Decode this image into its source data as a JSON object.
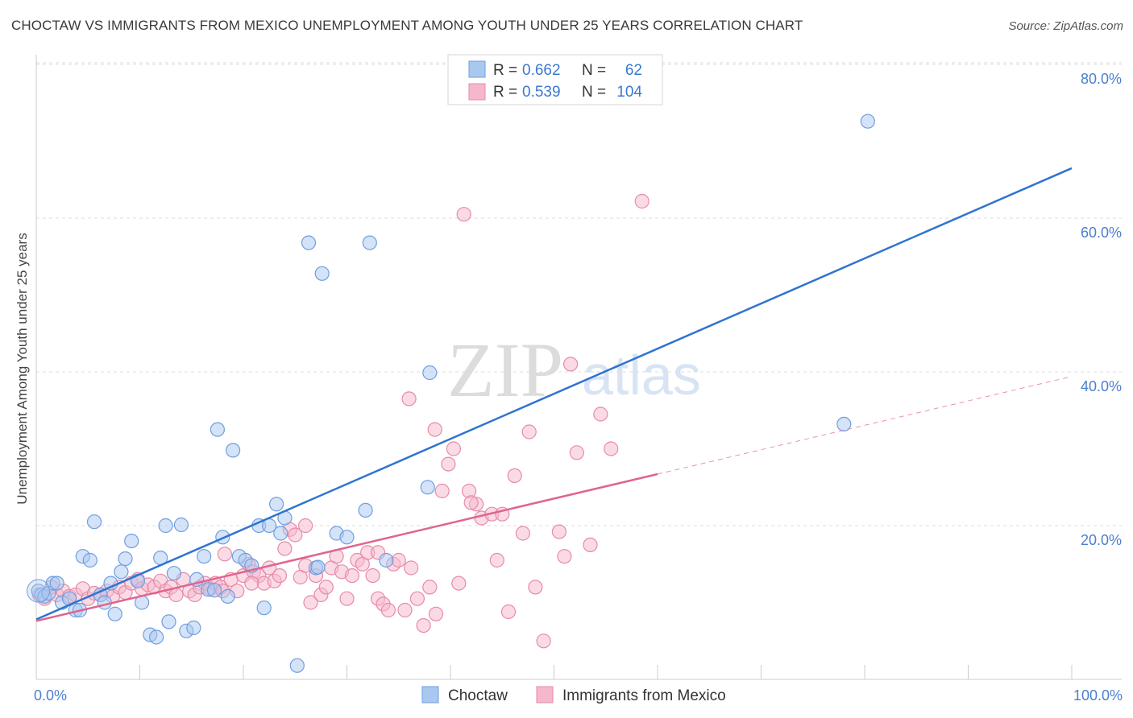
{
  "title": "CHOCTAW VS IMMIGRANTS FROM MEXICO UNEMPLOYMENT AMONG YOUTH UNDER 25 YEARS CORRELATION CHART",
  "source": "Source: ZipAtlas.com",
  "watermark": {
    "zip": "ZIP",
    "atlas": "atlas"
  },
  "colors": {
    "choctaw_fill": "#a9c8f0",
    "choctaw_stroke": "#6f9ee0",
    "choctaw_line": "#2f74d0",
    "mexico_fill": "#f5b8cb",
    "mexico_stroke": "#e88aa8",
    "mexico_line": "#e0648f",
    "grid": "#dddddd",
    "tick_text": "#4a7fd1"
  },
  "chart_data": {
    "type": "scatter",
    "title": "CHOCTAW VS IMMIGRANTS FROM MEXICO UNEMPLOYMENT AMONG YOUTH UNDER 25 YEARS CORRELATION CHART",
    "xlabel": "",
    "ylabel": "Unemployment Among Youth under 25 years",
    "xlim": [
      0,
      100
    ],
    "ylim": [
      0,
      83
    ],
    "x_tick_labels": [
      "0.0%",
      "100.0%"
    ],
    "y_ticks": [
      20,
      40,
      60,
      80
    ],
    "y_tick_labels": [
      "20.0%",
      "40.0%",
      "60.0%",
      "80.0%"
    ],
    "legend": [
      {
        "r_label": "R =",
        "r": "0.662",
        "n_label": "N =",
        "n": "62"
      },
      {
        "r_label": "R =",
        "r": "0.539",
        "n_label": "N =",
        "n": "104"
      }
    ],
    "series": [
      {
        "name": "Choctaw",
        "trend": {
          "x0": 0,
          "y0": 7.8,
          "x1": 100,
          "y1": 66.5,
          "dashed_after": null
        },
        "points": [
          [
            0.2,
            11.5
          ],
          [
            0.5,
            11.0
          ],
          [
            0.8,
            10.8
          ],
          [
            1.2,
            11.2
          ],
          [
            1.6,
            12.5
          ],
          [
            2.0,
            12.5
          ],
          [
            2.5,
            10.0
          ],
          [
            3.2,
            10.5
          ],
          [
            3.8,
            9.0
          ],
          [
            4.2,
            9.0
          ],
          [
            4.5,
            16.0
          ],
          [
            5.2,
            15.5
          ],
          [
            5.6,
            20.5
          ],
          [
            6.2,
            11.0
          ],
          [
            6.6,
            10.0
          ],
          [
            7.2,
            12.5
          ],
          [
            7.6,
            8.5
          ],
          [
            8.2,
            14.0
          ],
          [
            8.6,
            15.7
          ],
          [
            9.2,
            18.0
          ],
          [
            9.8,
            12.8
          ],
          [
            10.2,
            10.0
          ],
          [
            11.0,
            5.8
          ],
          [
            11.6,
            5.5
          ],
          [
            12.0,
            15.8
          ],
          [
            12.5,
            20.0
          ],
          [
            12.8,
            7.5
          ],
          [
            13.3,
            13.8
          ],
          [
            14.0,
            20.1
          ],
          [
            14.5,
            6.3
          ],
          [
            15.2,
            6.7
          ],
          [
            15.5,
            13.0
          ],
          [
            16.2,
            16.0
          ],
          [
            16.6,
            11.7
          ],
          [
            17.2,
            11.6
          ],
          [
            17.5,
            32.5
          ],
          [
            18.0,
            18.5
          ],
          [
            18.5,
            10.8
          ],
          [
            19.0,
            29.8
          ],
          [
            19.6,
            16.0
          ],
          [
            20.2,
            15.5
          ],
          [
            20.8,
            14.8
          ],
          [
            21.5,
            20.0
          ],
          [
            22.0,
            9.3
          ],
          [
            22.5,
            20.0
          ],
          [
            23.2,
            22.8
          ],
          [
            23.6,
            19.0
          ],
          [
            24.0,
            21.0
          ],
          [
            25.2,
            1.8
          ],
          [
            26.3,
            56.8
          ],
          [
            27.0,
            14.5
          ],
          [
            27.6,
            52.8
          ],
          [
            29.0,
            19.0
          ],
          [
            30.0,
            18.5
          ],
          [
            31.8,
            22.0
          ],
          [
            32.2,
            56.8
          ],
          [
            33.8,
            15.5
          ],
          [
            37.8,
            25.0
          ],
          [
            38.0,
            39.9
          ],
          [
            80.3,
            72.6
          ],
          [
            78.0,
            33.2
          ],
          [
            27.2,
            14.6
          ]
        ]
      },
      {
        "name": "Immigrants from Mexico",
        "trend": {
          "x0": 0,
          "y0": 7.6,
          "x1": 60,
          "y1": 26.7,
          "dashed_after": [
            60,
            26.7,
            100,
            39.4
          ]
        },
        "points": [
          [
            0.3,
            11.0
          ],
          [
            0.8,
            10.5
          ],
          [
            1.5,
            12.0
          ],
          [
            2.0,
            11.0
          ],
          [
            2.6,
            11.5
          ],
          [
            3.2,
            10.8
          ],
          [
            3.8,
            11.0
          ],
          [
            4.5,
            11.8
          ],
          [
            5.0,
            10.5
          ],
          [
            5.6,
            11.2
          ],
          [
            6.2,
            11.0
          ],
          [
            6.8,
            11.5
          ],
          [
            7.4,
            10.8
          ],
          [
            8.0,
            12.0
          ],
          [
            8.6,
            11.3
          ],
          [
            9.2,
            12.5
          ],
          [
            9.8,
            13.0
          ],
          [
            10.2,
            11.8
          ],
          [
            10.8,
            12.3
          ],
          [
            11.4,
            12.0
          ],
          [
            12.0,
            12.8
          ],
          [
            12.5,
            11.5
          ],
          [
            13.0,
            12.0
          ],
          [
            13.5,
            11.0
          ],
          [
            14.2,
            13.0
          ],
          [
            14.8,
            11.5
          ],
          [
            15.3,
            11.0
          ],
          [
            15.8,
            12.0
          ],
          [
            16.3,
            12.5
          ],
          [
            16.8,
            11.8
          ],
          [
            17.3,
            12.5
          ],
          [
            17.8,
            12.0
          ],
          [
            18.2,
            16.3
          ],
          [
            18.8,
            13.0
          ],
          [
            19.4,
            11.5
          ],
          [
            20.0,
            13.5
          ],
          [
            20.5,
            15.0
          ],
          [
            21.0,
            14.0
          ],
          [
            21.5,
            13.5
          ],
          [
            22.0,
            12.5
          ],
          [
            22.5,
            14.5
          ],
          [
            23.0,
            12.8
          ],
          [
            23.5,
            13.5
          ],
          [
            24.0,
            17.0
          ],
          [
            24.5,
            19.5
          ],
          [
            25.0,
            18.8
          ],
          [
            25.5,
            13.3
          ],
          [
            26.0,
            14.8
          ],
          [
            26.5,
            10.0
          ],
          [
            27.0,
            13.5
          ],
          [
            27.5,
            11.0
          ],
          [
            28.0,
            12.0
          ],
          [
            28.5,
            14.5
          ],
          [
            29.0,
            16.0
          ],
          [
            29.5,
            14.0
          ],
          [
            30.0,
            10.5
          ],
          [
            30.5,
            13.5
          ],
          [
            31.0,
            15.5
          ],
          [
            31.5,
            15.0
          ],
          [
            32.0,
            16.5
          ],
          [
            32.5,
            13.5
          ],
          [
            33.0,
            10.5
          ],
          [
            33.5,
            9.8
          ],
          [
            34.0,
            9.0
          ],
          [
            34.5,
            15.0
          ],
          [
            35.0,
            15.5
          ],
          [
            35.6,
            9.0
          ],
          [
            36.2,
            14.5
          ],
          [
            36.8,
            10.5
          ],
          [
            37.4,
            7.0
          ],
          [
            38.0,
            12.0
          ],
          [
            38.6,
            8.5
          ],
          [
            39.2,
            24.5
          ],
          [
            39.8,
            28.0
          ],
          [
            40.3,
            30.0
          ],
          [
            40.8,
            12.5
          ],
          [
            41.3,
            60.5
          ],
          [
            41.8,
            24.5
          ],
          [
            42.5,
            22.8
          ],
          [
            43.0,
            21.0
          ],
          [
            44.0,
            21.5
          ],
          [
            44.5,
            15.5
          ],
          [
            45.0,
            21.5
          ],
          [
            45.6,
            8.8
          ],
          [
            46.2,
            26.5
          ],
          [
            47.0,
            19.0
          ],
          [
            47.6,
            32.2
          ],
          [
            48.2,
            12.0
          ],
          [
            49.0,
            5.0
          ],
          [
            50.5,
            19.2
          ],
          [
            51.0,
            16.0
          ],
          [
            51.6,
            41.0
          ],
          [
            52.2,
            29.5
          ],
          [
            53.5,
            17.5
          ],
          [
            54.5,
            34.5
          ],
          [
            55.5,
            30.0
          ],
          [
            58.5,
            62.2
          ],
          [
            36.0,
            36.5
          ],
          [
            38.5,
            32.5
          ],
          [
            42.0,
            23.0
          ],
          [
            18.0,
            11.5
          ],
          [
            20.8,
            12.5
          ],
          [
            26.0,
            20.0
          ],
          [
            33.0,
            16.5
          ]
        ]
      }
    ]
  }
}
